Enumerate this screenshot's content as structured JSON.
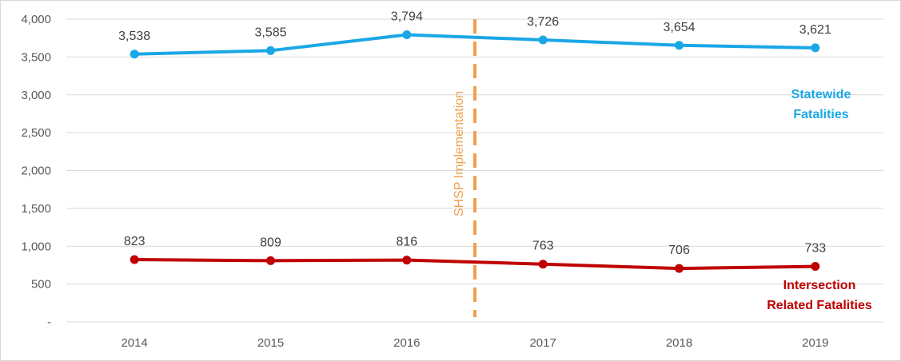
{
  "chart_data": {
    "type": "line",
    "title": "",
    "xlabel": "",
    "ylabel": "",
    "categories": [
      "2014",
      "2015",
      "2016",
      "2017",
      "2018",
      "2019"
    ],
    "ylim": [
      0,
      4000
    ],
    "y_ticks": [
      {
        "value": 0,
        "label": "-"
      },
      {
        "value": 500,
        "label": "500"
      },
      {
        "value": 1000,
        "label": "1,000"
      },
      {
        "value": 1500,
        "label": "1,500"
      },
      {
        "value": 2000,
        "label": "2,000"
      },
      {
        "value": 2500,
        "label": "2,500"
      },
      {
        "value": 3000,
        "label": "3,000"
      },
      {
        "value": 3500,
        "label": "3,500"
      },
      {
        "value": 4000,
        "label": "4,000"
      }
    ],
    "grid": true,
    "series": [
      {
        "name": "Statewide Fatalities",
        "name_lines": [
          "Statewide",
          "Fatalities"
        ],
        "color": "#1aa7e6",
        "values": [
          3538,
          3585,
          3794,
          3726,
          3654,
          3621
        ],
        "labels": [
          "3,538",
          "3,585",
          "3,794",
          "3,726",
          "3,654",
          "3,621"
        ]
      },
      {
        "name": "Intersection Related Fatalities",
        "name_lines": [
          "Intersection",
          "Related Fatalities"
        ],
        "color": "#c00000",
        "values": [
          823,
          809,
          816,
          763,
          706,
          733
        ],
        "labels": [
          "823",
          "809",
          "816",
          "763",
          "706",
          "733"
        ]
      }
    ],
    "annotation": {
      "text": "SHSP Implementation",
      "color": "#f0a050",
      "between": [
        "2016",
        "2017"
      ]
    }
  }
}
